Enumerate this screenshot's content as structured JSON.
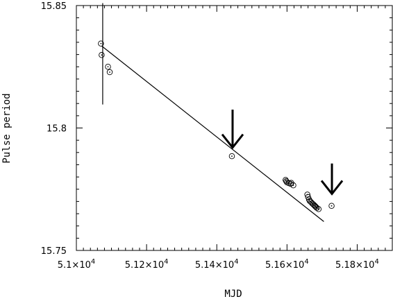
{
  "chart_data": {
    "type": "scatter",
    "title": "",
    "xlabel": "MJD",
    "ylabel": "Pulse period",
    "xlim": [
      51000,
      51900
    ],
    "ylim": [
      15.75,
      15.85
    ],
    "grid": false,
    "legend": "none",
    "x_ticks": [
      {
        "value": 51000,
        "mant": "5.1",
        "exp": "4"
      },
      {
        "value": 51200,
        "mant": "5.12",
        "exp": "4"
      },
      {
        "value": 51400,
        "mant": "5.14",
        "exp": "4"
      },
      {
        "value": 51600,
        "mant": "5.16",
        "exp": "4"
      },
      {
        "value": 51800,
        "mant": "5.18",
        "exp": "4"
      }
    ],
    "y_ticks": [
      {
        "value": 15.75,
        "label": "15.75"
      },
      {
        "value": 15.8,
        "label": "15.8"
      },
      {
        "value": 15.85,
        "label": "15.85"
      }
    ],
    "series": [
      {
        "points": [
          [
            51070,
            15.8345
          ],
          [
            51072,
            15.8298
          ],
          [
            51090,
            15.825
          ],
          [
            51095,
            15.8228
          ],
          [
            51443,
            15.7885
          ],
          [
            51596,
            15.7788
          ],
          [
            51598,
            15.7783
          ],
          [
            51600,
            15.7778
          ],
          [
            51605,
            15.7775
          ],
          [
            51610,
            15.7772
          ],
          [
            51612,
            15.7776
          ],
          [
            51618,
            15.7766
          ],
          [
            51658,
            15.7728
          ],
          [
            51660,
            15.7718
          ],
          [
            51663,
            15.7708
          ],
          [
            51665,
            15.7702
          ],
          [
            51668,
            15.7698
          ],
          [
            51672,
            15.7692
          ],
          [
            51675,
            15.7688
          ],
          [
            51678,
            15.7684
          ],
          [
            51680,
            15.7681
          ],
          [
            51682,
            15.7678
          ],
          [
            51685,
            15.7674
          ],
          [
            51690,
            15.7669
          ],
          [
            51727,
            15.7682
          ]
        ]
      }
    ],
    "error_bar": {
      "x": 51075,
      "y_low": 15.8096,
      "y_high": 15.851
    },
    "fit_line": [
      [
        51072,
        15.8335
      ],
      [
        51705,
        15.7618
      ]
    ],
    "arrows": [
      {
        "x": 51445,
        "y_tip": 15.792,
        "y_tail": 15.8075
      },
      {
        "x": 51728,
        "y_tip": 15.7731,
        "y_tail": 15.7855
      }
    ]
  }
}
